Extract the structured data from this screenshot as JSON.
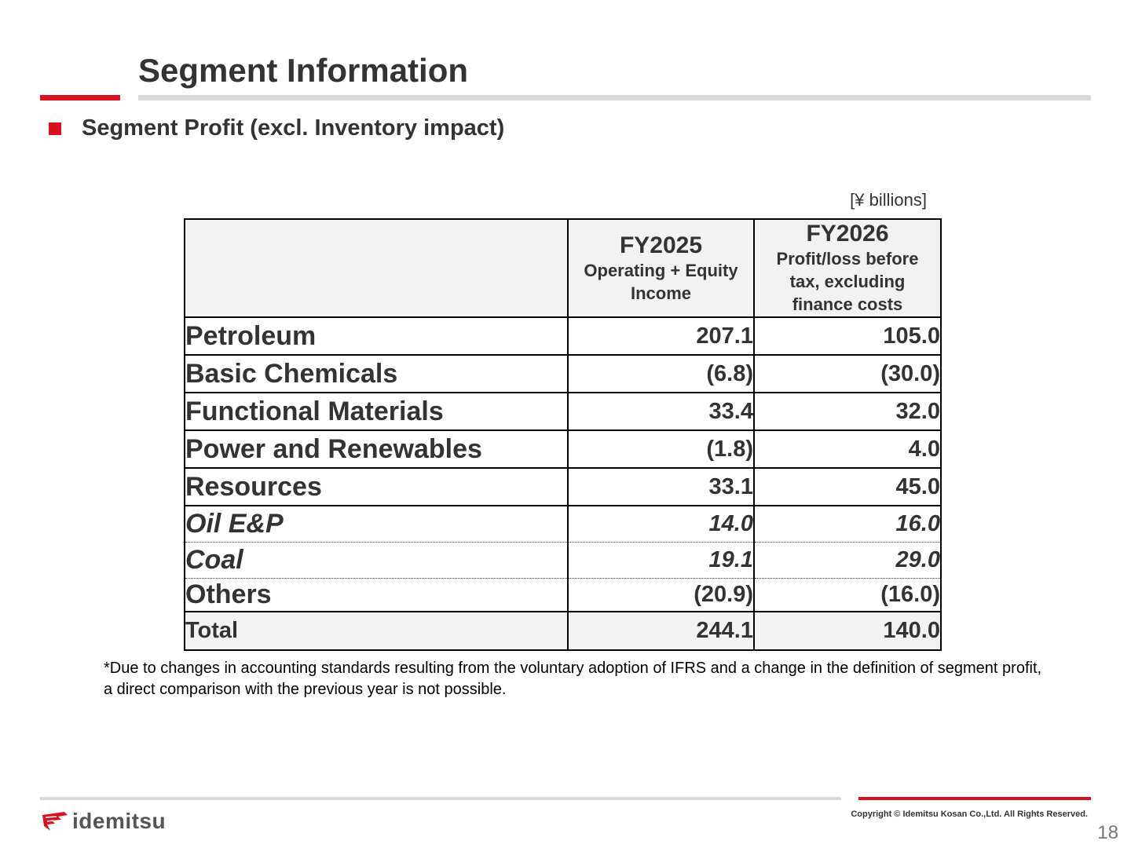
{
  "header": {
    "title": "Segment Information",
    "subheading": "Segment Profit (excl. Inventory impact)"
  },
  "table": {
    "unit": "[¥ billions]",
    "columns": [
      {
        "year": "FY2025",
        "subtitle": "Operating + Equity Income"
      },
      {
        "year": "FY2026",
        "subtitle": "Profit/loss before tax, excluding finance costs"
      }
    ],
    "rows": [
      {
        "label": "Petroleum",
        "fy2025": "207.1",
        "fy2026": "105.0"
      },
      {
        "label": "Basic Chemicals",
        "fy2025": "(6.8)",
        "fy2026": "(30.0)"
      },
      {
        "label": "Functional Materials",
        "fy2025": "33.4",
        "fy2026": "32.0"
      },
      {
        "label": "Power and Renewables",
        "fy2025": "(1.8)",
        "fy2026": "4.0"
      },
      {
        "label": "Resources",
        "fy2025": "33.1",
        "fy2026": "45.0"
      },
      {
        "label": "Oil E&P",
        "fy2025": "14.0",
        "fy2026": "16.0"
      },
      {
        "label": "Coal",
        "fy2025": "19.1",
        "fy2026": "29.0"
      },
      {
        "label": "Others",
        "fy2025": "(20.9)",
        "fy2026": "(16.0)"
      },
      {
        "label": "Total",
        "fy2025": "244.1",
        "fy2026": "140.0"
      }
    ]
  },
  "footnote": "*Due to changes in accounting standards resulting from the voluntary adoption of IFRS and a change in the definition of segment profit, a direct comparison with the previous year is not possible.",
  "footer": {
    "logo_text": "idemitsu",
    "logo_icon": "idemitsu-logo-icon",
    "copyright": "Copyright © Idemitsu Kosan Co.,Ltd.  All Rights Reserved.",
    "page_number": "18"
  },
  "colors": {
    "accent_red": "#d7111f",
    "rule_gray": "#d9d9d9",
    "header_fill": "#f2f2f2",
    "text": "#333333"
  }
}
